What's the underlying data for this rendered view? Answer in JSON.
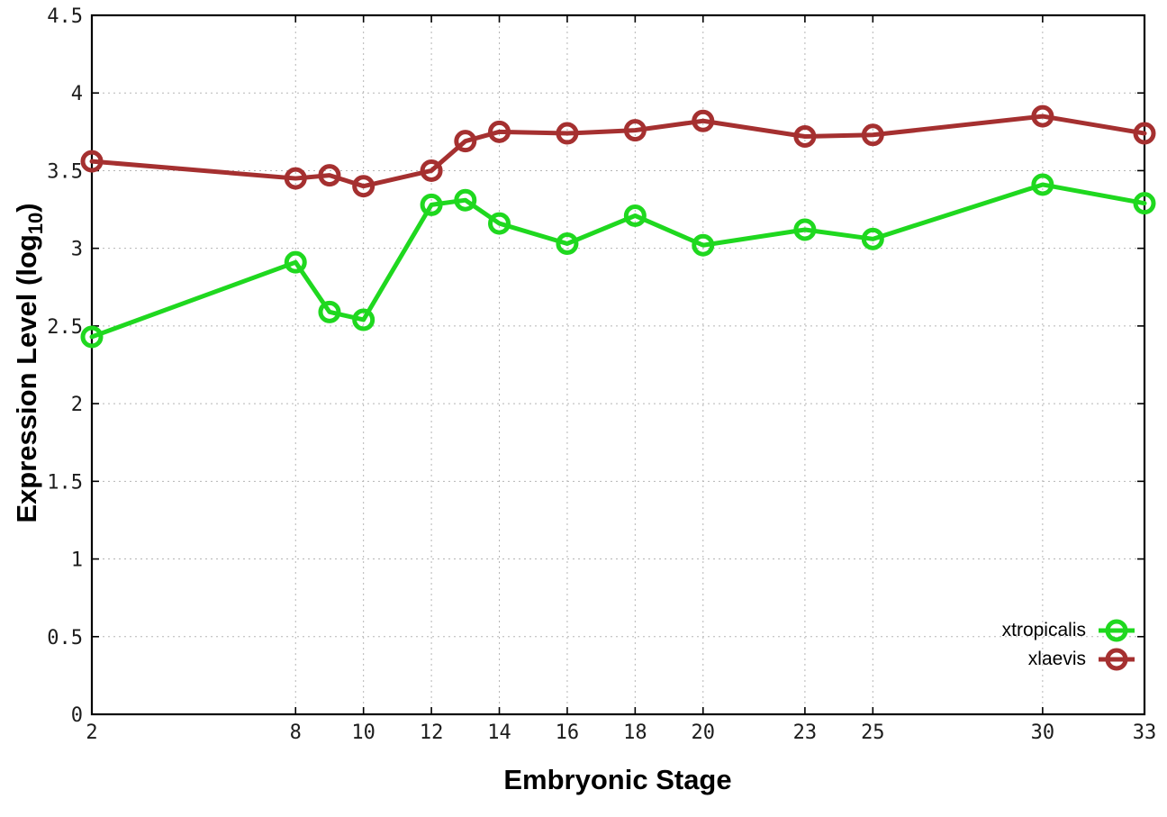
{
  "figure": {
    "ylabel_main": "Expression Level (log",
    "ylabel_sub": "10",
    "ylabel_close": ")"
  },
  "chart_data": {
    "type": "line",
    "title": "",
    "xlabel": "Embryonic Stage",
    "ylabel": "Expression Level (log10)",
    "x": [
      2,
      8,
      9,
      10,
      12,
      13,
      14,
      16,
      18,
      20,
      23,
      25,
      30,
      33
    ],
    "series": [
      {
        "name": "xtropicalis",
        "color": "#1fd81f",
        "values": [
          2.43,
          2.91,
          2.59,
          2.54,
          3.28,
          3.31,
          3.16,
          3.03,
          3.21,
          3.02,
          3.12,
          3.06,
          3.41,
          3.29
        ]
      },
      {
        "name": "xlaevis",
        "color": "#a53030",
        "values": [
          3.56,
          3.45,
          3.47,
          3.4,
          3.5,
          3.69,
          3.75,
          3.74,
          3.76,
          3.82,
          3.72,
          3.73,
          3.85,
          3.74
        ]
      }
    ],
    "xlim": [
      2,
      33
    ],
    "ylim": [
      0,
      4.5
    ],
    "xticks": [
      2,
      8,
      10,
      12,
      14,
      16,
      18,
      20,
      23,
      25,
      30,
      33
    ],
    "yticks": [
      "0",
      "0.5",
      "1",
      "1.5",
      "2",
      "2.5",
      "3",
      "3.5",
      "4",
      "4.5"
    ],
    "grid": "dotted",
    "legend_position": "inside-bottom-right",
    "marker": "open-circle"
  }
}
